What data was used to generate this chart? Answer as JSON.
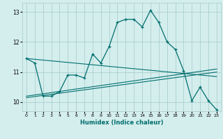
{
  "xlabel": "Humidex (Indice chaleur)",
  "ylabel": "",
  "background_color": "#d4eeed",
  "grid_color": "#aacfcf",
  "line_color": "#006e6e",
  "xlim": [
    -0.5,
    23.5
  ],
  "ylim": [
    9.7,
    13.3
  ],
  "xticks": [
    0,
    1,
    2,
    3,
    4,
    5,
    6,
    7,
    8,
    9,
    10,
    11,
    12,
    13,
    14,
    15,
    16,
    17,
    18,
    19,
    20,
    21,
    22,
    23
  ],
  "yticks": [
    10,
    11,
    12,
    13
  ],
  "series1_x": [
    0,
    1,
    2,
    3,
    4,
    5,
    6,
    7,
    8,
    9,
    10,
    11,
    12,
    13,
    14,
    15,
    16,
    17,
    18,
    19,
    20,
    21,
    22,
    23
  ],
  "series1_y": [
    11.45,
    11.3,
    10.2,
    10.2,
    10.35,
    10.9,
    10.9,
    10.8,
    11.6,
    11.3,
    11.85,
    12.65,
    12.75,
    12.75,
    12.5,
    13.05,
    12.65,
    12.0,
    11.75,
    11.05,
    10.05,
    10.5,
    10.05,
    9.75
  ],
  "series2_x": [
    0,
    23
  ],
  "series2_y": [
    11.45,
    10.85
  ],
  "series3_x": [
    0,
    23
  ],
  "series3_y": [
    10.2,
    11.1
  ],
  "series4_x": [
    0,
    23
  ],
  "series4_y": [
    10.15,
    11.0
  ]
}
